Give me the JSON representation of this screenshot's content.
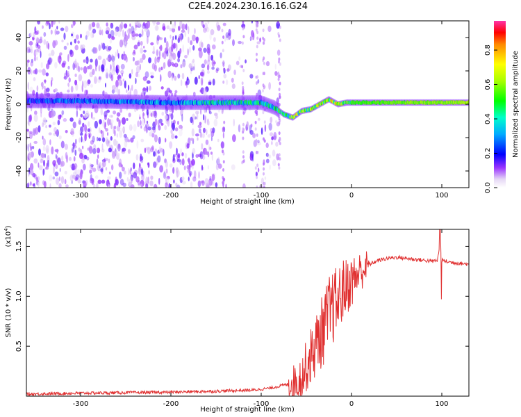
{
  "title": "C2E4.2024.230.16.16.G24",
  "chart_data": [
    {
      "type": "heatmap",
      "name": "spectrogram",
      "xlabel": "Height of straight line (km)",
      "ylabel": "Frequency (Hz)",
      "xlim": [
        -360,
        130
      ],
      "ylim": [
        -50,
        50
      ],
      "xticks": [
        -300,
        -200,
        -100,
        0,
        100
      ],
      "xtick_labels": [
        "-300",
        "-200",
        "-100",
        "0",
        "100"
      ],
      "yticks": [
        40,
        20,
        0,
        -20,
        -40
      ],
      "ytick_labels": [
        "40",
        "20",
        "0",
        "-20",
        "-40"
      ],
      "colorbar": {
        "label": "Normalized spectral amplitude",
        "range": [
          0,
          0.97
        ],
        "ticks": [
          0.0,
          0.2,
          0.4,
          0.6,
          0.8
        ],
        "tick_labels": [
          "0.0",
          "0.2",
          "0.4",
          "0.6",
          "0.8"
        ]
      },
      "signal_track": {
        "x": [
          -360,
          -300,
          -200,
          -150,
          -100,
          -85,
          -75,
          -65,
          -55,
          -45,
          -35,
          -25,
          -15,
          -5,
          0,
          50,
          100,
          130
        ],
        "freq": [
          2,
          2,
          1,
          1,
          1,
          -2,
          -6,
          -8,
          -4,
          -3,
          0,
          3,
          0,
          1,
          1,
          1,
          1,
          1
        ],
        "amplitude": [
          0.3,
          0.35,
          0.4,
          0.5,
          0.55,
          0.5,
          0.7,
          0.8,
          0.7,
          0.75,
          0.85,
          0.9,
          0.9,
          0.8,
          0.55,
          0.6,
          0.62,
          0.65
        ]
      }
    },
    {
      "type": "line",
      "name": "snr",
      "xlabel": "Height of straight line (km)",
      "ylabel": "SNR (10 * v/v)",
      "y_scale_label": "(x10^4)",
      "y_scale_base": "(x10",
      "y_scale_exp": "4",
      "y_scale_close": ")",
      "xlim": [
        -360,
        130
      ],
      "ylim": [
        0,
        1.67
      ],
      "xticks": [
        -300,
        -200,
        -100,
        0,
        100
      ],
      "xtick_labels": [
        "-300",
        "-200",
        "-100",
        "0",
        "100"
      ],
      "yticks": [
        0.5,
        1.0,
        1.5
      ],
      "ytick_labels": [
        "0.5",
        "1.0",
        "1.5"
      ],
      "color": "#e03030",
      "x": [
        -360,
        -300,
        -200,
        -150,
        -110,
        -90,
        -70,
        -60,
        -55,
        -50,
        -45,
        -40,
        -35,
        -30,
        -25,
        -20,
        -15,
        -10,
        -5,
        0,
        10,
        20,
        30,
        40,
        50,
        60,
        70,
        80,
        90,
        95,
        98,
        100,
        110,
        120,
        130
      ],
      "values": [
        0.02,
        0.03,
        0.04,
        0.05,
        0.06,
        0.08,
        0.12,
        0.15,
        0.2,
        0.3,
        0.4,
        0.5,
        0.6,
        0.7,
        0.8,
        0.9,
        0.95,
        1.05,
        1.1,
        1.15,
        1.25,
        1.32,
        1.36,
        1.38,
        1.39,
        1.38,
        1.37,
        1.36,
        1.35,
        1.36,
        1.5,
        1.36,
        1.34,
        1.33,
        1.32
      ]
    }
  ]
}
